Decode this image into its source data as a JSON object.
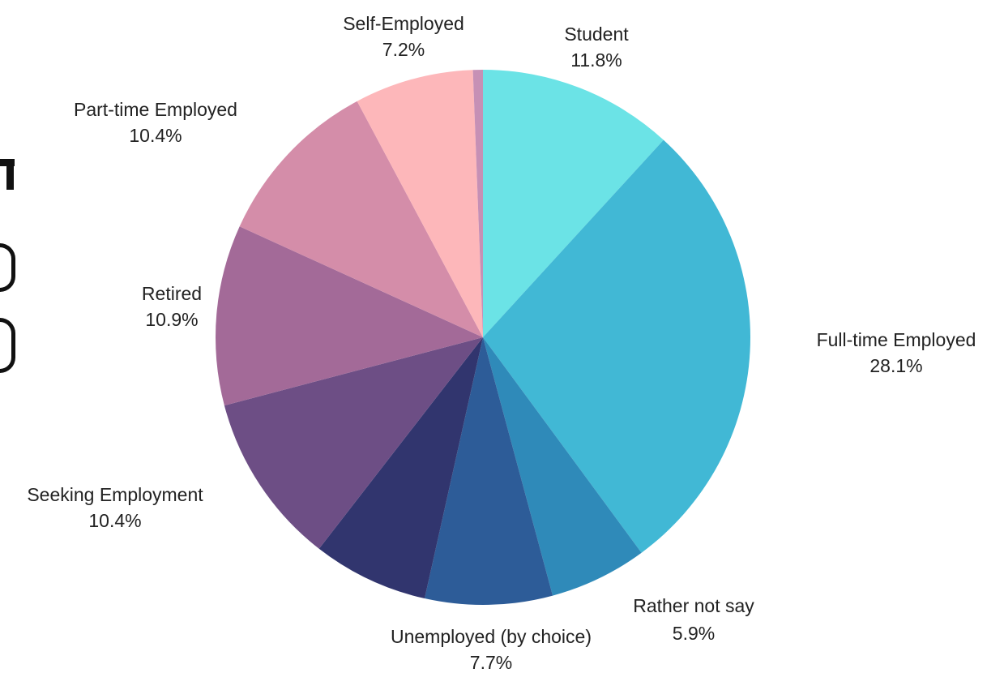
{
  "chart_data": {
    "type": "pie",
    "start_angle_deg": 0,
    "direction": "clockwise",
    "slices": [
      {
        "label": "Student",
        "value": 11.8,
        "display": "11.8%",
        "color": "#6BE3E6"
      },
      {
        "label": "Full-time  Employed",
        "value": 28.1,
        "display": "28.1%",
        "color": "#41B8D5"
      },
      {
        "label": "Rather not say",
        "value": 5.9,
        "display": "5.9%",
        "color": "#2F8AB9"
      },
      {
        "label": "Unemployed (by choice)",
        "value": 7.7,
        "display": "7.7%",
        "color": "#2D5C98"
      },
      {
        "label": "",
        "value": 7.0,
        "display": "",
        "color": "#31356E"
      },
      {
        "label": "Seeking Employment",
        "value": 10.4,
        "display": "10.4%",
        "color": "#6D4E85"
      },
      {
        "label": "Retired",
        "value": 10.9,
        "display": "10.9%",
        "color": "#A36A98"
      },
      {
        "label": "Part-time Employed",
        "value": 10.4,
        "display": "10.4%",
        "color": "#D48DA9"
      },
      {
        "label": "Self-Employed",
        "value": 7.2,
        "display": "7.2%",
        "color": "#FDB7BA"
      },
      {
        "label": "",
        "value": 0.6,
        "display": "",
        "color": "#C690B5"
      }
    ]
  }
}
